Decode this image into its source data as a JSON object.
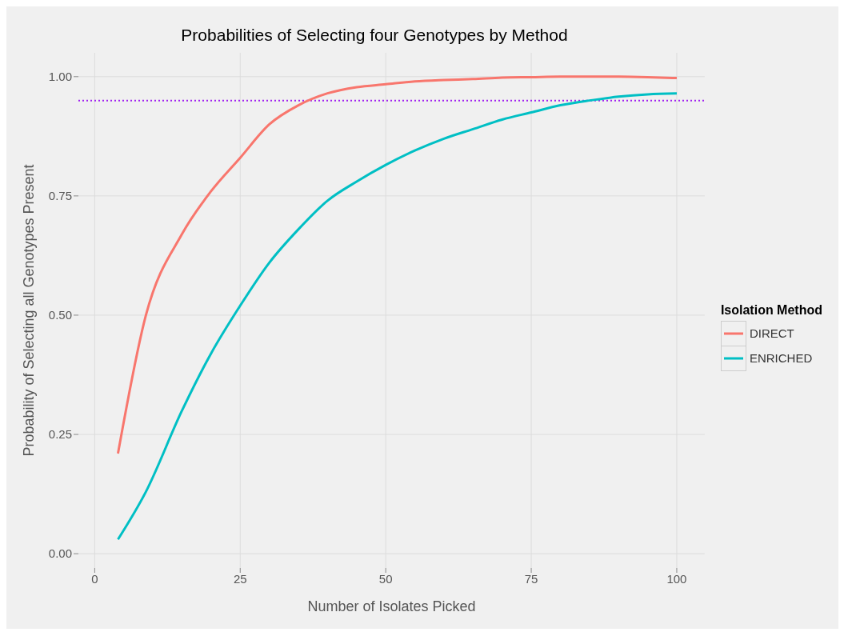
{
  "chart_data": {
    "type": "line",
    "title": "Probabilities of Selecting four Genotypes by Method",
    "xlabel": "Number of Isolates Picked",
    "ylabel": "Probability of Selecting all Genotypes Present",
    "legend_title": "Isolation Method",
    "x": [
      4,
      8.8,
      15,
      20,
      25,
      30,
      35,
      40,
      45,
      50,
      55,
      60,
      65,
      70,
      75,
      80,
      85,
      90,
      95,
      100
    ],
    "series": [
      {
        "name": "DIRECT",
        "color": "#f8766d",
        "values": [
          0.21,
          0.5,
          0.67,
          0.76,
          0.83,
          0.9,
          0.94,
          0.965,
          0.978,
          0.984,
          0.99,
          0.993,
          0.995,
          0.998,
          0.999,
          1.0,
          1.0,
          1.0,
          0.999,
          0.997
        ]
      },
      {
        "name": "ENRICHED",
        "color": "#00bfc4",
        "values": [
          0.03,
          0.13,
          0.3,
          0.42,
          0.52,
          0.61,
          0.68,
          0.74,
          0.78,
          0.815,
          0.845,
          0.87,
          0.89,
          0.91,
          0.925,
          0.94,
          0.95,
          0.958,
          0.963,
          0.965
        ]
      }
    ],
    "xlim": [
      -2.8,
      104.8
    ],
    "ylim": [
      -0.03,
      1.05
    ],
    "xticks": [
      0,
      25,
      50,
      75,
      100
    ],
    "yticks": [
      {
        "value": 0,
        "label": "0.00"
      },
      {
        "value": 0.25,
        "label": "0.25"
      },
      {
        "value": 0.5,
        "label": "0.50"
      },
      {
        "value": 0.75,
        "label": "0.75"
      },
      {
        "value": 1,
        "label": "1.00"
      }
    ],
    "ref_lines": [
      {
        "axis": "y",
        "value": 0.95,
        "label": null,
        "color": "#a020f0",
        "line_style": "dotted"
      }
    ],
    "grid": true,
    "legend": "right",
    "marker": "none",
    "line_style": "solid"
  }
}
